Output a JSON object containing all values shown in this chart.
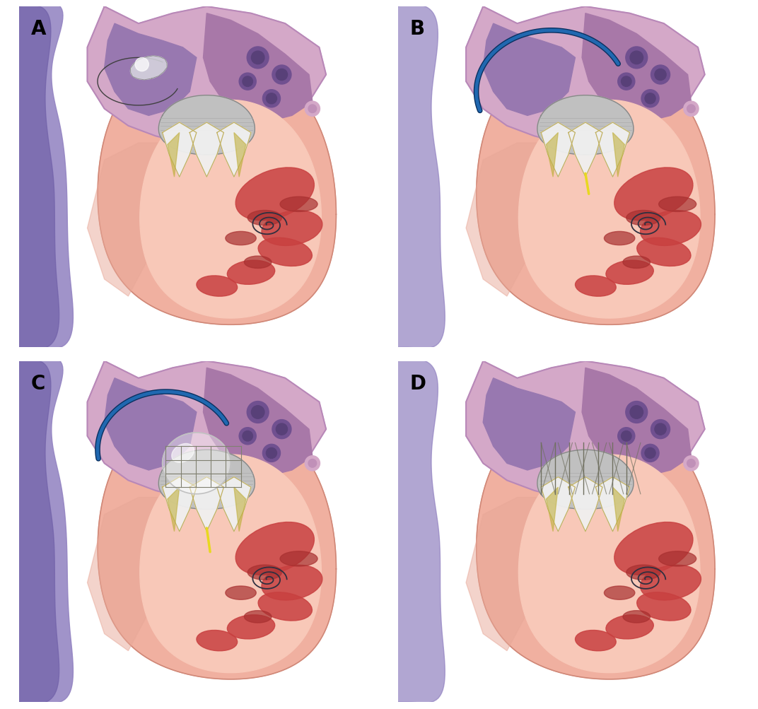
{
  "panel_labels": [
    "A",
    "B",
    "C",
    "D"
  ],
  "label_fontsize": 20,
  "label_fontweight": "bold",
  "background_color": "#ffffff",
  "figsize": [
    10.72,
    10.04
  ],
  "dpi": 100,
  "colors": {
    "heart_outer_pink": "#e8a0a0",
    "heart_outer_border": "#c87070",
    "atrium_purple_light": "#d4a0c8",
    "atrium_purple_mid": "#c090bc",
    "atrium_dark_inner": "#9878b0",
    "atrium_darkest": "#8060a0",
    "ventricle_pink": "#f0b8a8",
    "ventricle_border": "#d08070",
    "muscle_red": "#c84040",
    "muscle_dark": "#a03030",
    "valve_gray": "#c8c8c8",
    "valve_white": "#f0f0f0",
    "leaflet_white": "#ffffff",
    "leaflet_olive": "#c8b040",
    "catheter_blue": "#1a5fa0",
    "catheter_dark": "#0a3060",
    "spiral_dark": "#303030",
    "yellow_wire": "#e8d820",
    "vascular_purple": "#8070b8",
    "vascular_blue": "#5060a8",
    "highlight_white": "#f8f8f8",
    "stent_gray": "#909090"
  }
}
